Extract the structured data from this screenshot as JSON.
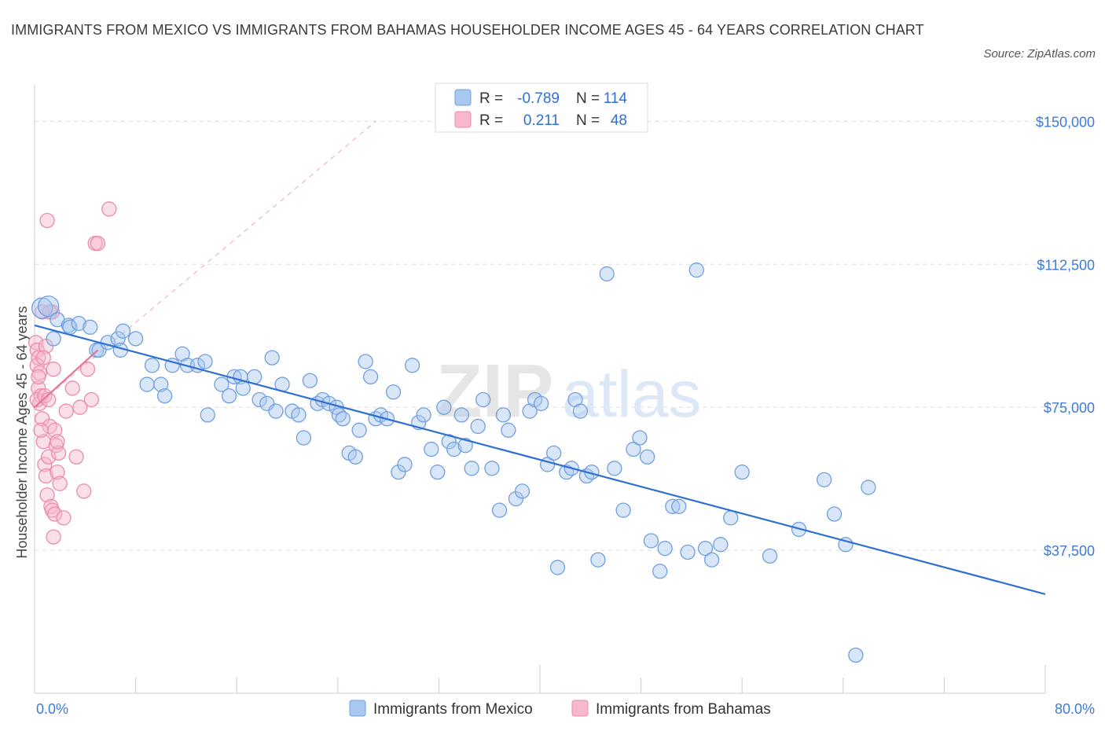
{
  "title": "IMMIGRANTS FROM MEXICO VS IMMIGRANTS FROM BAHAMAS HOUSEHOLDER INCOME AGES 45 - 64 YEARS CORRELATION CHART",
  "source": "Source: ZipAtlas.com",
  "colors": {
    "mexico_fill": "#a9c8f0",
    "mexico_stroke": "#6f9fe0",
    "mexico_line": "#2e6fd0",
    "bahamas_fill": "#f7b8cc",
    "bahamas_stroke": "#ec8aa9",
    "bahamas_line": "#e8739a",
    "axis_label": "#3d7bd6",
    "grid": "#dddddd"
  },
  "legend": {
    "rows": [
      {
        "r_label": "R =",
        "r_value": "-0.789",
        "n_label": "N =",
        "n_value": "114"
      },
      {
        "r_label": "R =",
        "r_value": "0.211",
        "n_label": "N =",
        "n_value": "48"
      }
    ]
  },
  "watermark": {
    "left": "ZIP",
    "right": "atlas"
  },
  "chart_data": {
    "type": "scatter",
    "title": "IMMIGRANTS FROM MEXICO VS IMMIGRANTS FROM BAHAMAS HOUSEHOLDER INCOME AGES 45 - 64 YEARS CORRELATION CHART",
    "xlabel": "",
    "ylabel": "Householder Income Ages 45 - 64 years",
    "xlim": [
      0,
      80
    ],
    "ylim": [
      0,
      157500
    ],
    "x_tick_labels": [
      "0.0%",
      "80.0%"
    ],
    "y_ticks": [
      37500,
      75000,
      112500,
      150000
    ],
    "y_tick_labels": [
      "$37,500",
      "$75,000",
      "$112,500",
      "$150,000"
    ],
    "grid": true,
    "legend_position": "top-center",
    "series": [
      {
        "name": "Immigrants from Mexico",
        "R": -0.789,
        "N": 114,
        "trend": {
          "x": [
            0,
            80
          ],
          "y": [
            96500,
            26000
          ]
        },
        "points": [
          [
            0.6,
            101000
          ],
          [
            1.1,
            101500
          ],
          [
            1.8,
            98000
          ],
          [
            1.5,
            93000
          ],
          [
            2.7,
            96500
          ],
          [
            2.8,
            96000
          ],
          [
            3.5,
            97000
          ],
          [
            4.4,
            96000
          ],
          [
            4.9,
            90000
          ],
          [
            5.1,
            90000
          ],
          [
            5.8,
            92000
          ],
          [
            6.6,
            93000
          ],
          [
            6.8,
            90000
          ],
          [
            7.0,
            95000
          ],
          [
            8.0,
            93000
          ],
          [
            8.9,
            81000
          ],
          [
            9.3,
            86000
          ],
          [
            10.0,
            81000
          ],
          [
            10.3,
            78000
          ],
          [
            10.9,
            86000
          ],
          [
            11.7,
            89000
          ],
          [
            12.1,
            86000
          ],
          [
            12.9,
            86000
          ],
          [
            13.5,
            87000
          ],
          [
            13.7,
            73000
          ],
          [
            14.8,
            81000
          ],
          [
            15.4,
            78000
          ],
          [
            15.8,
            83000
          ],
          [
            16.3,
            83000
          ],
          [
            16.5,
            80000
          ],
          [
            17.4,
            83000
          ],
          [
            17.8,
            77000
          ],
          [
            18.4,
            76000
          ],
          [
            18.8,
            88000
          ],
          [
            19.1,
            74000
          ],
          [
            19.6,
            81000
          ],
          [
            20.4,
            74000
          ],
          [
            20.9,
            73000
          ],
          [
            21.3,
            67000
          ],
          [
            21.8,
            82000
          ],
          [
            22.4,
            76000
          ],
          [
            22.8,
            77000
          ],
          [
            23.3,
            76000
          ],
          [
            23.9,
            75000
          ],
          [
            24.1,
            73000
          ],
          [
            24.4,
            72000
          ],
          [
            24.9,
            63000
          ],
          [
            25.4,
            62000
          ],
          [
            25.7,
            69000
          ],
          [
            26.2,
            87000
          ],
          [
            26.6,
            83000
          ],
          [
            27.0,
            72000
          ],
          [
            27.4,
            73000
          ],
          [
            27.9,
            72000
          ],
          [
            28.4,
            79000
          ],
          [
            28.8,
            58000
          ],
          [
            29.3,
            60000
          ],
          [
            29.9,
            86000
          ],
          [
            30.4,
            71000
          ],
          [
            30.8,
            73000
          ],
          [
            31.4,
            64000
          ],
          [
            31.9,
            58000
          ],
          [
            32.4,
            75000
          ],
          [
            32.8,
            66000
          ],
          [
            33.2,
            64000
          ],
          [
            33.8,
            73000
          ],
          [
            34.1,
            65000
          ],
          [
            34.6,
            59000
          ],
          [
            35.1,
            70000
          ],
          [
            35.5,
            77000
          ],
          [
            36.2,
            59000
          ],
          [
            36.8,
            48000
          ],
          [
            37.1,
            73000
          ],
          [
            37.5,
            69000
          ],
          [
            38.1,
            51000
          ],
          [
            38.6,
            53000
          ],
          [
            39.2,
            74000
          ],
          [
            39.6,
            77000
          ],
          [
            40.1,
            76000
          ],
          [
            40.6,
            60000
          ],
          [
            41.1,
            63000
          ],
          [
            41.4,
            33000
          ],
          [
            42.1,
            58000
          ],
          [
            42.5,
            59000
          ],
          [
            42.8,
            77000
          ],
          [
            43.2,
            74000
          ],
          [
            43.7,
            57000
          ],
          [
            44.1,
            58000
          ],
          [
            44.6,
            35000
          ],
          [
            45.3,
            110000
          ],
          [
            45.9,
            59000
          ],
          [
            46.6,
            48000
          ],
          [
            47.4,
            64000
          ],
          [
            47.9,
            67000
          ],
          [
            48.5,
            62000
          ],
          [
            48.8,
            40000
          ],
          [
            49.5,
            32000
          ],
          [
            49.9,
            38000
          ],
          [
            50.5,
            49000
          ],
          [
            51.0,
            49000
          ],
          [
            51.7,
            37000
          ],
          [
            52.4,
            111000
          ],
          [
            53.1,
            38000
          ],
          [
            53.6,
            35000
          ],
          [
            54.3,
            39000
          ],
          [
            55.1,
            46000
          ],
          [
            56.0,
            58000
          ],
          [
            58.2,
            36000
          ],
          [
            60.5,
            43000
          ],
          [
            64.2,
            39000
          ],
          [
            65.0,
            10000
          ],
          [
            62.5,
            56000
          ],
          [
            63.3,
            47000
          ],
          [
            66.0,
            54000
          ]
        ]
      },
      {
        "name": "Immigrants from Bahamas",
        "R": 0.211,
        "N": 48,
        "trend": {
          "x": [
            0,
            5
          ],
          "y": [
            75000,
            90000
          ]
        },
        "trend_extended": {
          "x": [
            0,
            27
          ],
          "y": [
            75000,
            150000
          ]
        },
        "points": [
          [
            0.1,
            92000
          ],
          [
            0.2,
            90000
          ],
          [
            0.3,
            88000
          ],
          [
            0.2,
            86000
          ],
          [
            0.4,
            84000
          ],
          [
            0.3,
            80000
          ],
          [
            0.5,
            78000
          ],
          [
            0.4,
            76000
          ],
          [
            0.2,
            77000
          ],
          [
            0.6,
            72000
          ],
          [
            0.7,
            66000
          ],
          [
            0.8,
            60000
          ],
          [
            0.9,
            57000
          ],
          [
            1.0,
            52000
          ],
          [
            1.1,
            62000
          ],
          [
            1.3,
            49000
          ],
          [
            1.4,
            48000
          ],
          [
            1.6,
            47000
          ],
          [
            1.5,
            41000
          ],
          [
            1.2,
            70000
          ],
          [
            1.6,
            69000
          ],
          [
            1.7,
            65000
          ],
          [
            1.8,
            58000
          ],
          [
            1.9,
            63000
          ],
          [
            0.9,
            91000
          ],
          [
            1.0,
            124000
          ],
          [
            1.4,
            100000
          ],
          [
            1.5,
            85000
          ],
          [
            2.0,
            55000
          ],
          [
            2.3,
            46000
          ],
          [
            2.5,
            74000
          ],
          [
            3.0,
            80000
          ],
          [
            3.3,
            62000
          ],
          [
            3.6,
            75000
          ],
          [
            3.9,
            53000
          ],
          [
            4.2,
            85000
          ],
          [
            4.5,
            77000
          ],
          [
            4.8,
            118000
          ],
          [
            5.0,
            118000
          ],
          [
            5.9,
            127000
          ],
          [
            0.6,
            100000
          ],
          [
            1.2,
            100000
          ],
          [
            0.8,
            78000
          ],
          [
            1.1,
            77000
          ],
          [
            0.5,
            69000
          ],
          [
            0.3,
            83000
          ],
          [
            1.8,
            66000
          ],
          [
            0.7,
            88000
          ]
        ]
      }
    ]
  }
}
